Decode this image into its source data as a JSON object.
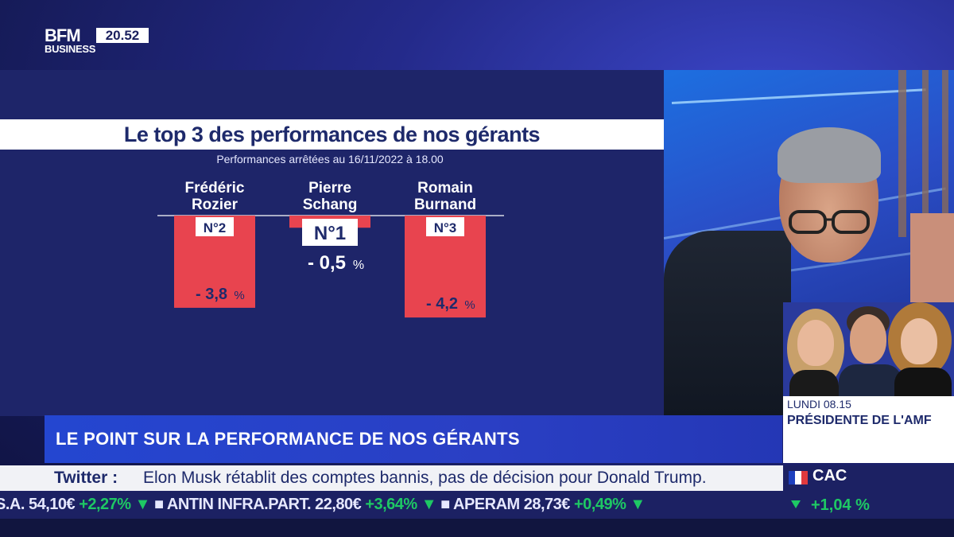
{
  "channel": {
    "name_line1": "BFM",
    "name_line2": "BUSINESS",
    "time": "20.52"
  },
  "chart_data": {
    "type": "bar",
    "title": "Le top 3 des performances de nos gérants",
    "subtitle": "Performances arrêtées au 16/11/2022 à 18.00",
    "categories": [
      "Frédéric Rozier",
      "Pierre Schang",
      "Romain Burnand"
    ],
    "category_lines": [
      [
        "Frédéric",
        "Rozier"
      ],
      [
        "Pierre",
        "Schang"
      ],
      [
        "Romain",
        "Burnand"
      ]
    ],
    "ranks": [
      "N°2",
      "N°1",
      "N°3"
    ],
    "values": [
      -3.8,
      -0.5,
      -4.2
    ],
    "value_labels": [
      "- 3,8",
      "- 0,5",
      "- 4,2"
    ],
    "unit": "%",
    "bar_color": "#e8444f",
    "ylim": [
      -4.5,
      0
    ],
    "grid": false
  },
  "banner": {
    "headline": "LE POINT SUR LA PERFORMANCE DE NOS GÉRANTS"
  },
  "guest_panel": {
    "time": "LUNDI 08.15",
    "title": "PRÉSIDENTE DE L'AMF"
  },
  "news_ticker": {
    "source": "Twitter :",
    "text": "Elon Musk rétablit des comptes bannis, pas de décision pour Donald Trump."
  },
  "stock_ticker": {
    "items": [
      {
        "name": "S.A.",
        "price": "54,10€",
        "change": "+2,27%"
      },
      {
        "name": "ANTIN INFRA.PART.",
        "price": "22,80€",
        "change": "+3,64%"
      },
      {
        "name": "APERAM",
        "price": "28,73€",
        "change": "+0,49%"
      }
    ]
  },
  "index": {
    "name": "CAC",
    "change": "+1,04 %"
  },
  "colors": {
    "positive": "#1ec864",
    "navy": "#1e2a6b",
    "bar": "#e8444f"
  }
}
